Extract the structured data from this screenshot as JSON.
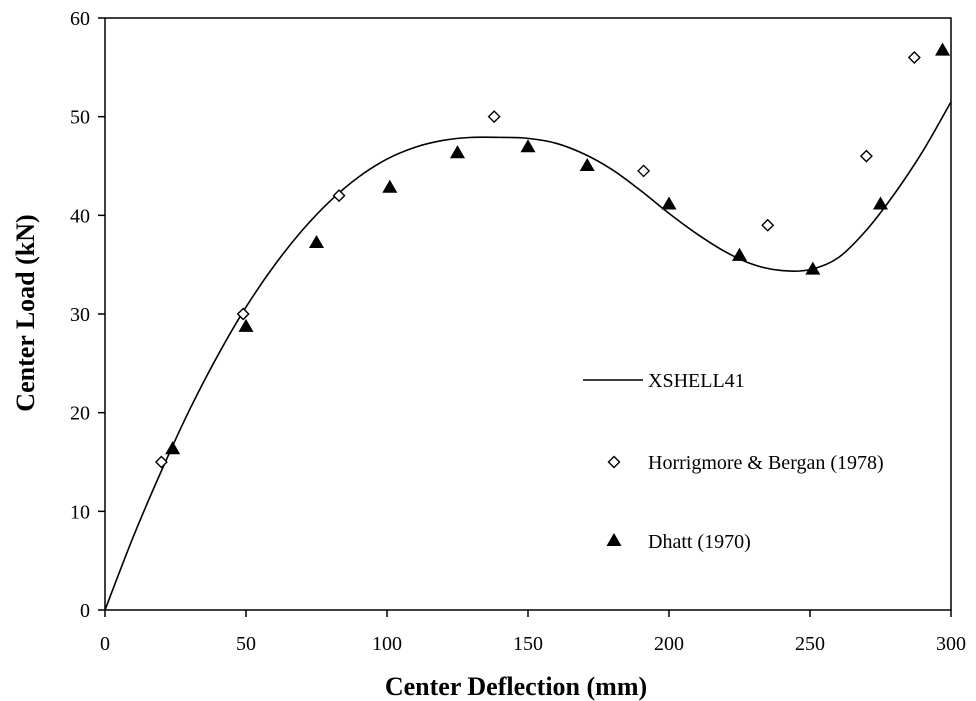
{
  "chart_data": {
    "type": "scatter",
    "title": "",
    "xlabel": "Center Deflection (mm)",
    "ylabel": "Center Load (kN)",
    "xlim": [
      0,
      300
    ],
    "ylim": [
      0,
      60
    ],
    "xticks": [
      0,
      50,
      100,
      150,
      200,
      250,
      300
    ],
    "yticks": [
      0,
      10,
      20,
      30,
      40,
      50,
      60
    ],
    "grid": false,
    "legend_position": "right-center",
    "series": [
      {
        "name": "XSHELL41",
        "kind": "line",
        "color": "#000000",
        "x": [
          0,
          10,
          20,
          30,
          40,
          50,
          60,
          70,
          80,
          90,
          100,
          110,
          120,
          130,
          140,
          150,
          160,
          170,
          180,
          190,
          200,
          210,
          220,
          230,
          240,
          250,
          260,
          270,
          280,
          290,
          300
        ],
        "y": [
          0,
          7.4,
          14.1,
          20.3,
          25.8,
          30.7,
          34.9,
          38.5,
          41.5,
          43.9,
          45.7,
          46.9,
          47.6,
          47.9,
          47.9,
          47.8,
          47.3,
          46.2,
          44.6,
          42.5,
          40.2,
          38.1,
          36.3,
          35.0,
          34.4,
          34.5,
          35.7,
          38.5,
          42.2,
          46.5,
          51.5
        ]
      },
      {
        "name": "Horrigmore & Bergan (1978)",
        "kind": "marker",
        "marker": "open-diamond",
        "color": "#000000",
        "x": [
          20,
          49,
          83,
          138,
          191,
          235,
          270,
          287
        ],
        "y": [
          15,
          30,
          42,
          50,
          44.5,
          39,
          46,
          56
        ]
      },
      {
        "name": "Dhatt (1970)",
        "kind": "marker",
        "marker": "filled-triangle",
        "color": "#000000",
        "x": [
          24,
          50,
          75,
          101,
          125,
          150,
          171,
          200,
          225,
          251,
          275,
          297
        ],
        "y": [
          16.3,
          28.7,
          37.2,
          42.8,
          46.3,
          46.9,
          45.0,
          41.1,
          35.9,
          34.5,
          41.1,
          56.7
        ]
      }
    ]
  }
}
